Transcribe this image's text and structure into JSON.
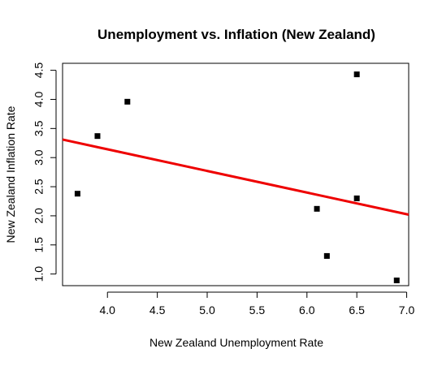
{
  "chart_data": {
    "type": "scatter",
    "title": "Unemployment vs. Inflation (New Zealand)",
    "xlabel": "New Zealand Unemployment Rate",
    "ylabel": "New Zealand Inflation Rate",
    "xlim": [
      3.55,
      7.02
    ],
    "ylim": [
      0.8,
      4.62
    ],
    "xticks": [
      "4.0",
      "4.5",
      "5.0",
      "5.5",
      "6.0",
      "6.5",
      "7.0"
    ],
    "yticks": [
      "1.0",
      "1.5",
      "2.0",
      "2.5",
      "3.0",
      "3.5",
      "4.0",
      "4.5"
    ],
    "grid": false,
    "series": [
      {
        "type": "scatter",
        "marker": "square",
        "color": "#000000",
        "x": [
          3.7,
          3.9,
          4.2,
          6.1,
          6.2,
          6.5,
          6.5,
          6.9
        ],
        "y": [
          2.38,
          3.37,
          3.96,
          2.12,
          1.31,
          4.43,
          2.3,
          0.89
        ]
      },
      {
        "type": "line",
        "style": "regression",
        "color": "#ee0000",
        "x": [
          3.55,
          7.02
        ],
        "y": [
          3.31,
          2.02
        ]
      }
    ]
  }
}
